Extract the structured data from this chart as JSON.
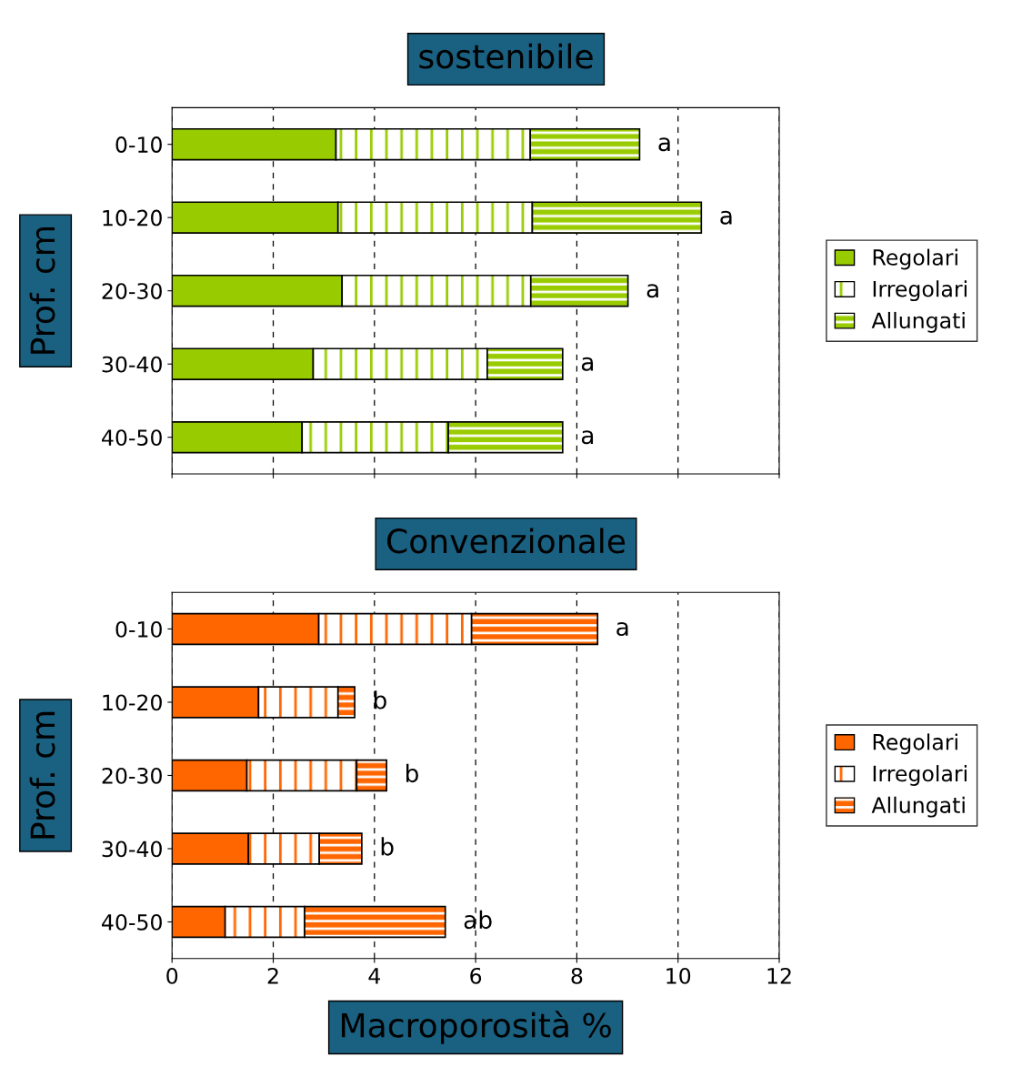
{
  "chart_data": [
    {
      "type": "bar",
      "orientation": "horizontal",
      "stacked": true,
      "title": "sostenibile",
      "ylabel": "Prof. cm",
      "categories": [
        "0-10",
        "10-20",
        "20-30",
        "30-40",
        "40-50"
      ],
      "series": [
        {
          "name": "Regolari",
          "color": "#99cc00",
          "values": [
            3.24,
            3.28,
            3.36,
            2.79,
            2.57
          ]
        },
        {
          "name": "Irregolari",
          "color": "#99cc00",
          "values": [
            3.84,
            3.84,
            3.73,
            3.44,
            2.89
          ]
        },
        {
          "name": "Allungati",
          "color": "#99cc00",
          "values": [
            2.16,
            3.34,
            1.92,
            1.49,
            2.26
          ]
        }
      ],
      "xlim": [
        0,
        12
      ],
      "xticks": [
        {
          "value": 0,
          "label": null
        },
        {
          "value": 2,
          "label": null
        },
        {
          "value": 4,
          "label": null
        },
        {
          "value": 6,
          "label": null
        },
        {
          "value": 8,
          "label": null
        },
        {
          "value": 10,
          "label": null
        },
        {
          "value": 12,
          "label": null
        }
      ],
      "tick_labels": "y",
      "grid": "x",
      "legend": "right",
      "annotations": [
        "a",
        "a",
        "a",
        "a",
        "a"
      ]
    },
    {
      "type": "bar",
      "orientation": "horizontal",
      "stacked": true,
      "title": "Convenzionale",
      "ylabel": "Prof. cm",
      "xlabel": "Macroporosità %",
      "categories": [
        "0-10",
        "10-20",
        "20-30",
        "30-40",
        "40-50"
      ],
      "series": [
        {
          "name": "Regolari",
          "color": "#ff6600",
          "values": [
            2.9,
            1.71,
            1.48,
            1.51,
            1.05
          ]
        },
        {
          "name": "Irregolari",
          "color": "#ff6600",
          "values": [
            3.02,
            1.57,
            2.17,
            1.4,
            1.57
          ]
        },
        {
          "name": "Allungati",
          "color": "#ff6600",
          "values": [
            2.49,
            0.33,
            0.59,
            0.84,
            2.78
          ]
        }
      ],
      "xlim": [
        0,
        12
      ],
      "xticks": [
        0,
        2,
        4,
        6,
        8,
        10,
        12
      ],
      "grid": "x",
      "legend": "right",
      "annotations": [
        "a",
        "b",
        "b",
        "b",
        "ab"
      ]
    }
  ]
}
